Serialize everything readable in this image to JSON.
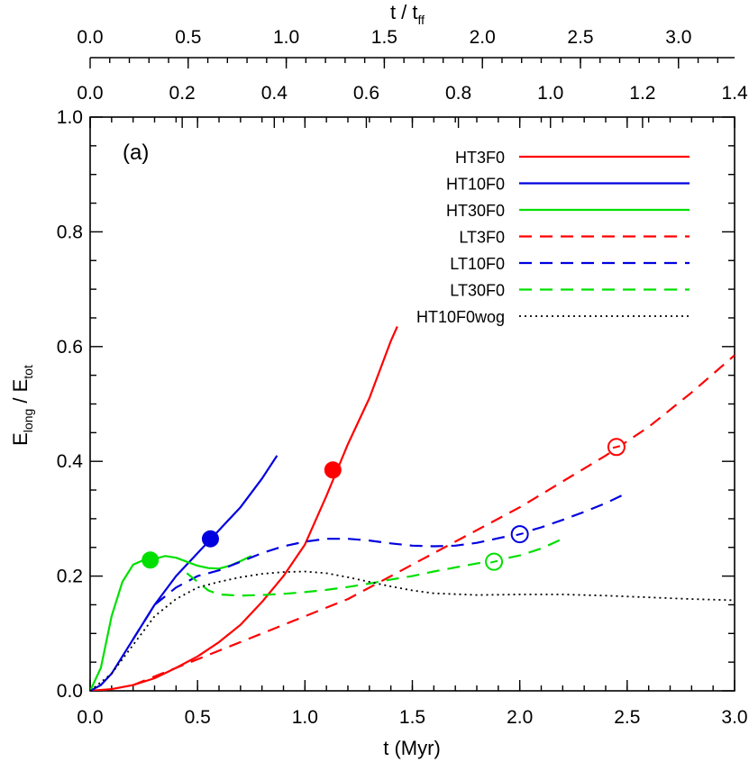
{
  "chart_data": {
    "type": "line",
    "panel_label": "(a)",
    "xlabel": "t (Myr)",
    "ylabel": {
      "main": "E",
      "sub1": "long",
      "sep": " / E",
      "sub2": "tot"
    },
    "xlim": [
      0.0,
      3.0
    ],
    "ylim": [
      0.0,
      1.0
    ],
    "x_ticks": [
      "0.0",
      "0.5",
      "1.0",
      "1.5",
      "2.0",
      "2.5",
      "3.0"
    ],
    "y_ticks": [
      "0.0",
      "0.2",
      "0.4",
      "0.6",
      "0.8",
      "1.0"
    ],
    "top_axis_1": {
      "ticks": [
        "0.0",
        "0.2",
        "0.4",
        "0.6",
        "0.8",
        "1.0",
        "1.2",
        "1.4"
      ],
      "min": 0.0,
      "max": 1.4,
      "to_myr": 2.143
    },
    "top_axis_2": {
      "label_main": "t / t",
      "label_sub": "ff",
      "ticks": [
        "0.0",
        "0.5",
        "1.0",
        "1.5",
        "2.0",
        "2.5",
        "3.0"
      ],
      "min": 0.0,
      "max": 3.3,
      "to_myr": 0.913
    },
    "series": [
      {
        "name": "HT3F0",
        "color": "#ff0000",
        "style": "solid",
        "x": [
          0.0,
          0.1,
          0.2,
          0.3,
          0.4,
          0.5,
          0.6,
          0.7,
          0.8,
          0.9,
          1.0,
          1.1,
          1.2,
          1.3,
          1.4,
          1.43
        ],
        "y": [
          0.0,
          0.003,
          0.01,
          0.022,
          0.04,
          0.06,
          0.085,
          0.115,
          0.155,
          0.2,
          0.255,
          0.34,
          0.43,
          0.51,
          0.61,
          0.635
        ],
        "marker": {
          "x": 1.13,
          "y": 0.385,
          "filled": true
        }
      },
      {
        "name": "HT10F0",
        "color": "#0000e0",
        "style": "solid",
        "x": [
          0.0,
          0.05,
          0.1,
          0.2,
          0.3,
          0.4,
          0.5,
          0.6,
          0.7,
          0.8,
          0.87
        ],
        "y": [
          0.0,
          0.01,
          0.03,
          0.09,
          0.15,
          0.2,
          0.24,
          0.28,
          0.32,
          0.37,
          0.41
        ],
        "marker": {
          "x": 0.56,
          "y": 0.265,
          "filled": true
        }
      },
      {
        "name": "HT30F0",
        "color": "#00e000",
        "style": "solid",
        "x": [
          0.0,
          0.05,
          0.1,
          0.15,
          0.2,
          0.25,
          0.3,
          0.35,
          0.4,
          0.45,
          0.5,
          0.55,
          0.6,
          0.65,
          0.7,
          0.75
        ],
        "y": [
          0.0,
          0.04,
          0.13,
          0.19,
          0.22,
          0.228,
          0.23,
          0.235,
          0.232,
          0.225,
          0.218,
          0.214,
          0.213,
          0.218,
          0.226,
          0.235
        ],
        "marker": {
          "x": 0.28,
          "y": 0.228,
          "filled": true
        }
      },
      {
        "name": "LT3F0",
        "color": "#ff0000",
        "style": "dashed",
        "x": [
          0.2,
          0.4,
          0.6,
          0.8,
          1.0,
          1.2,
          1.4,
          1.6,
          1.8,
          2.0,
          2.2,
          2.4,
          2.6,
          2.8,
          3.0
        ],
        "y": [
          0.01,
          0.04,
          0.07,
          0.1,
          0.13,
          0.16,
          0.2,
          0.24,
          0.28,
          0.32,
          0.365,
          0.41,
          0.46,
          0.52,
          0.585
        ],
        "marker": {
          "x": 2.45,
          "y": 0.425,
          "filled": false
        }
      },
      {
        "name": "LT10F0",
        "color": "#0000e0",
        "style": "dashed",
        "x": [
          0.2,
          0.3,
          0.4,
          0.5,
          0.6,
          0.7,
          0.8,
          0.9,
          1.0,
          1.1,
          1.2,
          1.3,
          1.4,
          1.5,
          1.6,
          1.7,
          1.8,
          1.9,
          2.0,
          2.1,
          2.2,
          2.3,
          2.4,
          2.5
        ],
        "y": [
          0.09,
          0.15,
          0.18,
          0.2,
          0.21,
          0.225,
          0.24,
          0.252,
          0.26,
          0.265,
          0.265,
          0.262,
          0.257,
          0.253,
          0.252,
          0.253,
          0.258,
          0.266,
          0.274,
          0.285,
          0.298,
          0.312,
          0.327,
          0.345
        ],
        "marker": {
          "x": 2.0,
          "y": 0.273,
          "filled": false
        }
      },
      {
        "name": "LT30F0",
        "color": "#00e000",
        "style": "dashed",
        "x": [
          0.45,
          0.5,
          0.55,
          0.6,
          0.7,
          0.8,
          0.9,
          1.0,
          1.1,
          1.2,
          1.3,
          1.4,
          1.5,
          1.6,
          1.7,
          1.8,
          1.9,
          2.0,
          2.1,
          2.2
        ],
        "y": [
          0.205,
          0.19,
          0.175,
          0.168,
          0.166,
          0.167,
          0.169,
          0.172,
          0.176,
          0.181,
          0.187,
          0.194,
          0.2,
          0.208,
          0.215,
          0.222,
          0.228,
          0.236,
          0.248,
          0.265
        ],
        "marker": {
          "x": 1.88,
          "y": 0.225,
          "filled": false
        }
      },
      {
        "name": "HT10F0wog",
        "color": "#000000",
        "style": "dotted",
        "x": [
          0.0,
          0.1,
          0.2,
          0.3,
          0.4,
          0.5,
          0.6,
          0.7,
          0.8,
          0.9,
          1.0,
          1.1,
          1.2,
          1.3,
          1.4,
          1.5,
          1.6,
          1.8,
          2.0,
          2.2,
          2.4,
          2.6,
          2.8,
          3.0
        ],
        "y": [
          0.0,
          0.03,
          0.08,
          0.13,
          0.16,
          0.18,
          0.19,
          0.198,
          0.204,
          0.207,
          0.208,
          0.205,
          0.198,
          0.19,
          0.182,
          0.175,
          0.17,
          0.167,
          0.168,
          0.168,
          0.166,
          0.163,
          0.16,
          0.158
        ],
        "marker": null
      }
    ]
  }
}
